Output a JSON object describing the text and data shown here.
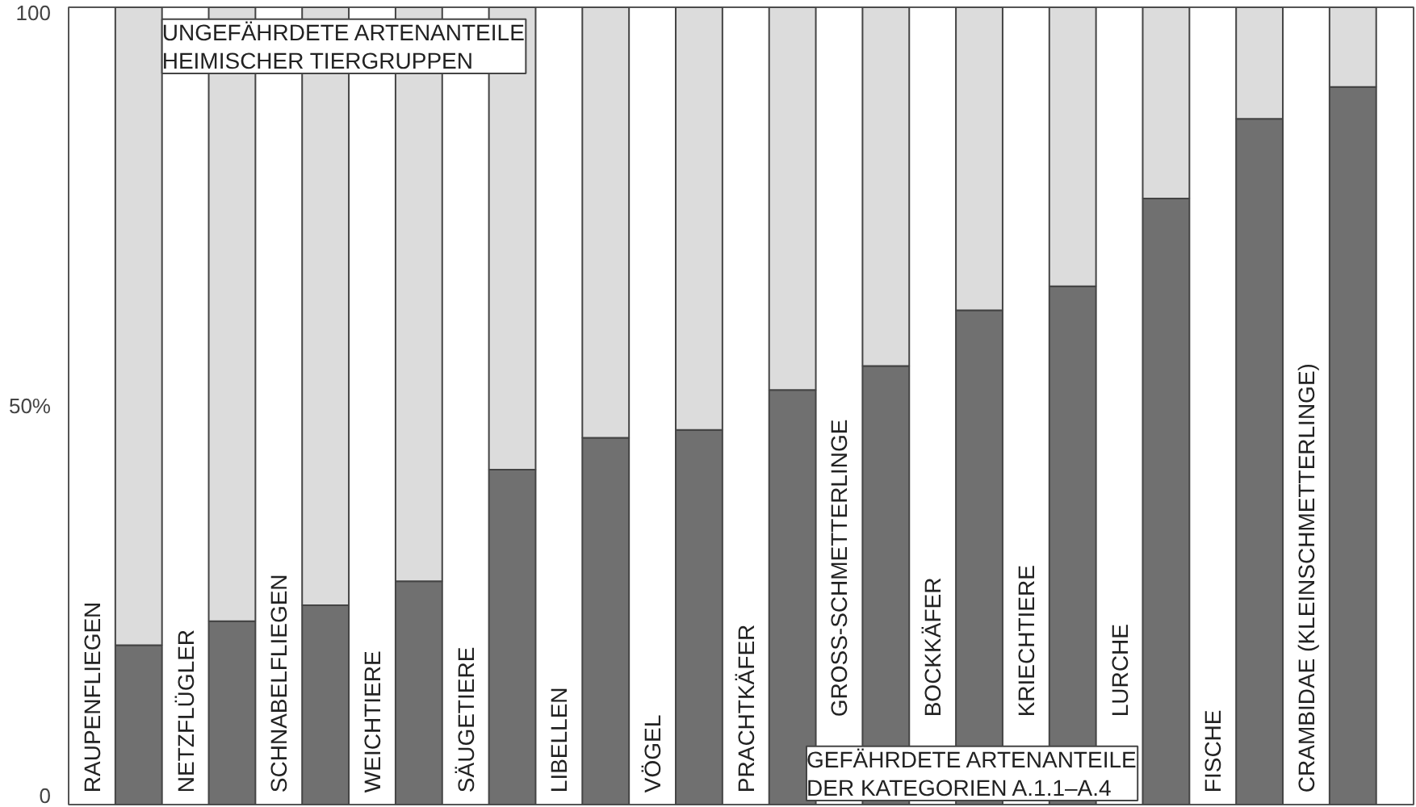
{
  "chart_data": {
    "type": "bar",
    "stacked": true,
    "categories": [
      "RAUPENFLIEGEN",
      "NETZFLÜGLER",
      "SCHNABELFLIEGEN",
      "WEICHTIERE",
      "SÄUGETIERE",
      "LIBELLEN",
      "VÖGEL",
      "PRACHTKÄFER",
      "GROSS-SCHMETTERLINGE",
      "BOCKKÄFER",
      "KRIECHTIERE",
      "LURCHE",
      "FISCHE",
      "CRAMBIDAE (KLEINSCHMETTERLINGE)"
    ],
    "series": [
      {
        "name": "GEFÄHRDETE ARTENANTEILE\nDER KATEGORIEN A.1.1–A.4",
        "color": "#707070",
        "values": [
          20,
          23,
          25,
          28,
          42,
          46,
          47,
          52,
          55,
          62,
          65,
          76,
          86,
          90
        ]
      },
      {
        "name": "UNGEFÄHRDETE ARTENANTEILE\nHEIMISCHER TIERGRUPPEN",
        "color": "#dcdcdc",
        "values": [
          80,
          77,
          75,
          72,
          58,
          54,
          53,
          48,
          45,
          38,
          35,
          24,
          14,
          10
        ]
      }
    ],
    "ylim": [
      0,
      100
    ],
    "yticks": [
      0,
      {
        "value": 50,
        "label": "50%"
      },
      100
    ]
  }
}
